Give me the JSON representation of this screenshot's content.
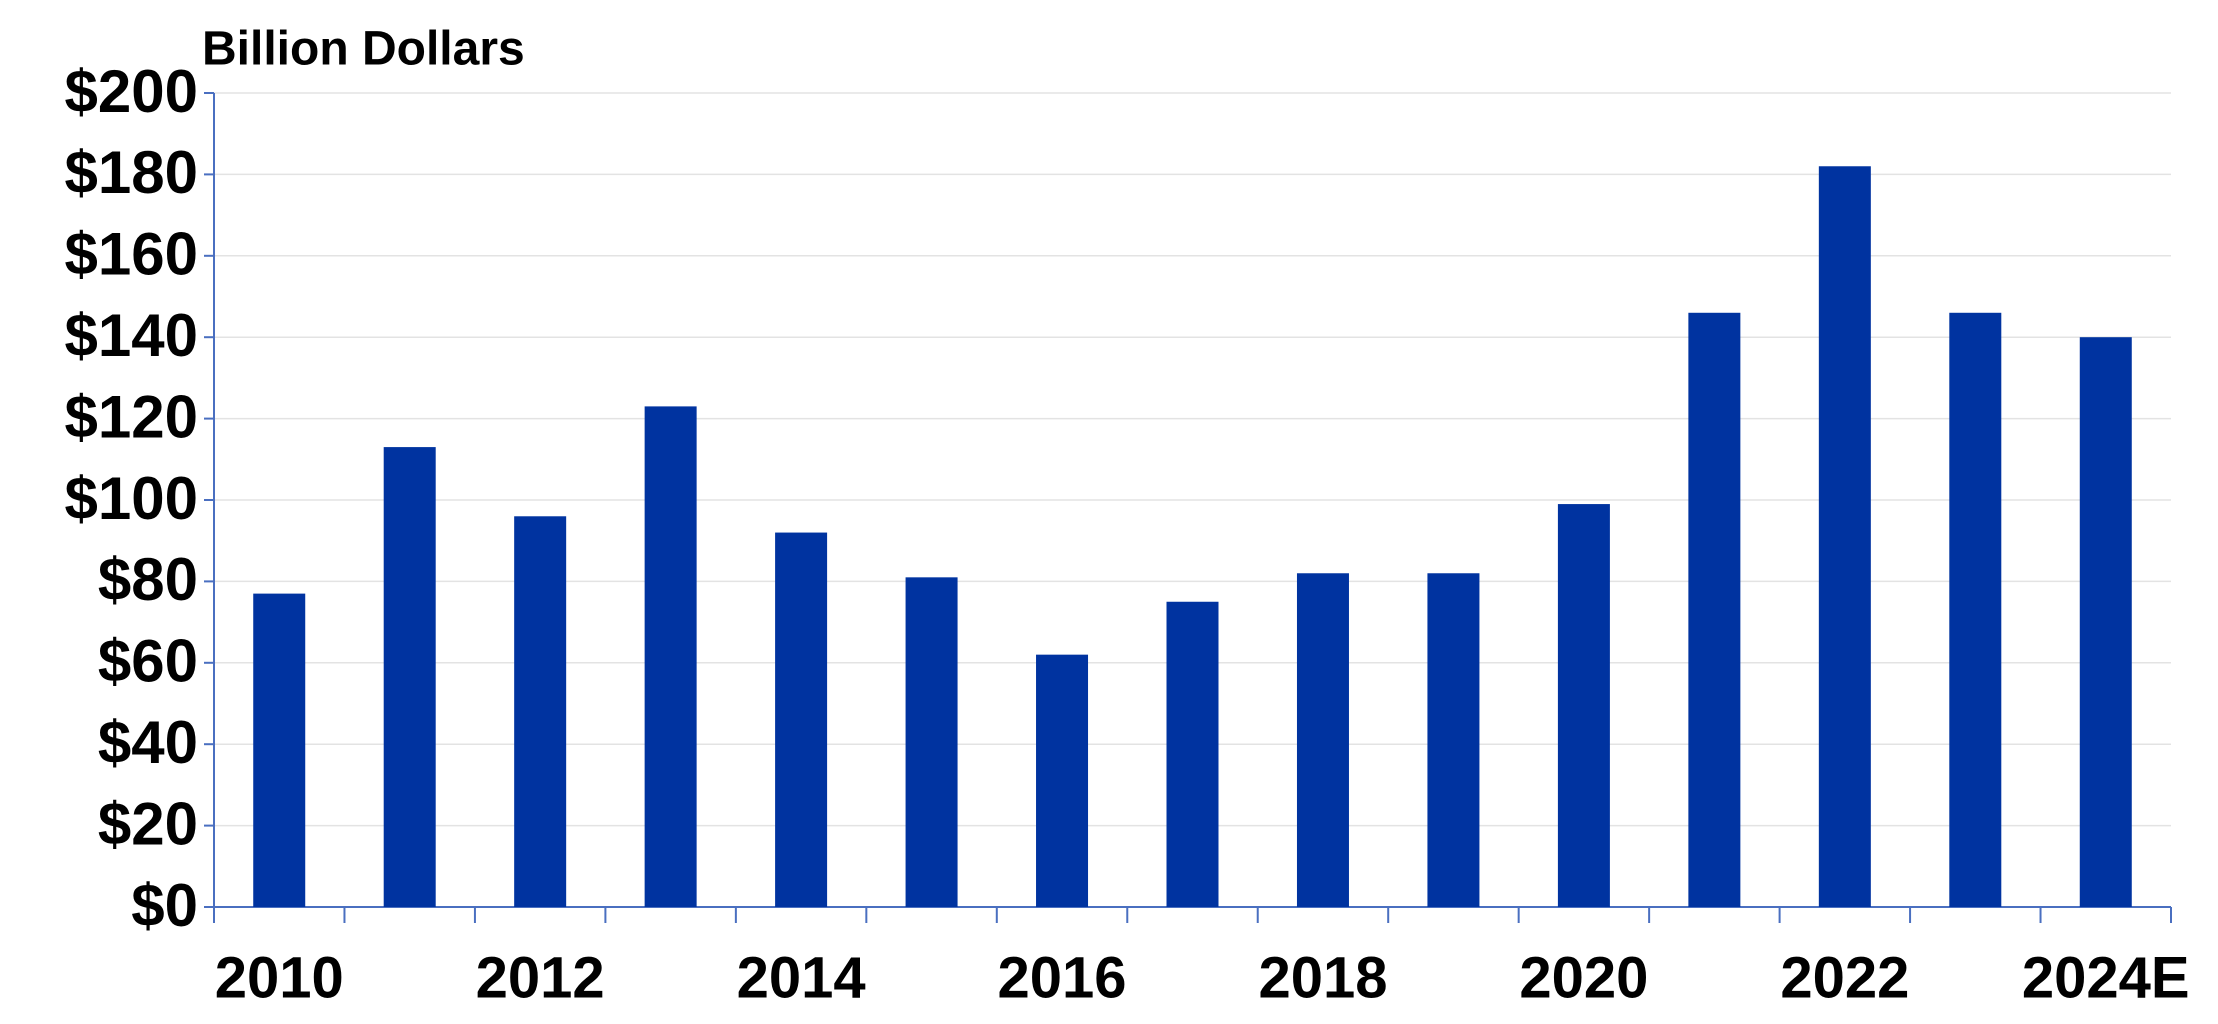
{
  "chart_data": {
    "type": "bar",
    "title": "Billion Dollars",
    "categories": [
      "2010",
      null,
      "2012",
      null,
      "2014",
      null,
      "2016",
      null,
      "2018",
      null,
      "2020",
      null,
      "2022",
      null,
      "2024E"
    ],
    "values": [
      77,
      113,
      96,
      123,
      92,
      81,
      62,
      75,
      82,
      82,
      99,
      146,
      182,
      146,
      140
    ],
    "color": "#0033a0",
    "ylim": [
      0,
      200
    ],
    "yticks": [
      {
        "value": 0,
        "label": "$0"
      },
      {
        "value": 20,
        "label": "$20"
      },
      {
        "value": 40,
        "label": "$40"
      },
      {
        "value": 60,
        "label": "$60"
      },
      {
        "value": 80,
        "label": "$80"
      },
      {
        "value": 100,
        "label": "$100"
      },
      {
        "value": 120,
        "label": "$120"
      },
      {
        "value": 140,
        "label": "$140"
      },
      {
        "value": 160,
        "label": "$160"
      },
      {
        "value": 180,
        "label": "$180"
      },
      {
        "value": 200,
        "label": "$200"
      }
    ],
    "grid": true
  }
}
